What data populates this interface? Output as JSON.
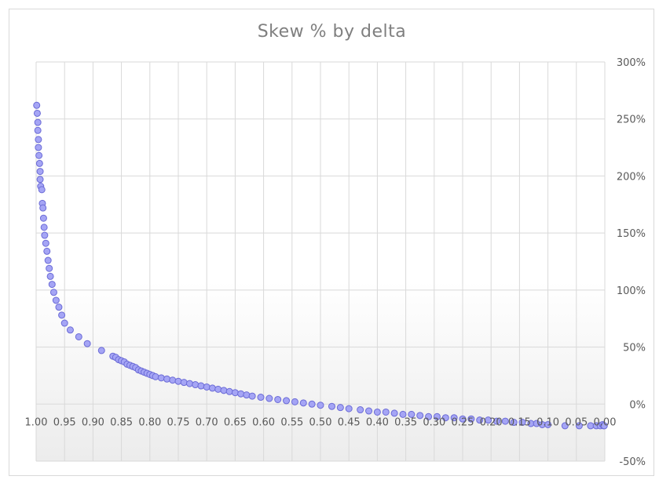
{
  "chart_data": {
    "type": "scatter",
    "title": "Skew % by delta",
    "xlabel": "",
    "ylabel": "",
    "xlim": [
      1.0,
      0.0
    ],
    "x_reversed": true,
    "ylim": [
      -50,
      300
    ],
    "y_unit": "%",
    "grid": true,
    "legend": "none",
    "x_ticks": [
      "1.00",
      "0.95",
      "0.90",
      "0.85",
      "0.80",
      "0.75",
      "0.70",
      "0.65",
      "0.60",
      "0.55",
      "0.50",
      "0.45",
      "0.40",
      "0.35",
      "0.30",
      "0.25",
      "0.20",
      "0.15",
      "0.10",
      "0.05",
      "0.00"
    ],
    "y_ticks": [
      "300%",
      "250%",
      "200%",
      "150%",
      "100%",
      "50%",
      "0%",
      "-50%"
    ],
    "marker_color": "#a5a5f5",
    "marker_edge_color": "#6b6bd6",
    "series": [
      {
        "points": [
          [
            0.999,
            262
          ],
          [
            0.998,
            255
          ],
          [
            0.997,
            247
          ],
          [
            0.997,
            240
          ],
          [
            0.996,
            232
          ],
          [
            0.996,
            225
          ],
          [
            0.995,
            218
          ],
          [
            0.994,
            211
          ],
          [
            0.993,
            204
          ],
          [
            0.993,
            197
          ],
          [
            0.992,
            191
          ],
          [
            0.99,
            188
          ],
          [
            0.989,
            176
          ],
          [
            0.988,
            172
          ],
          [
            0.987,
            163
          ],
          [
            0.986,
            155
          ],
          [
            0.985,
            148
          ],
          [
            0.983,
            141
          ],
          [
            0.981,
            134
          ],
          [
            0.979,
            126
          ],
          [
            0.977,
            119
          ],
          [
            0.975,
            112
          ],
          [
            0.972,
            105
          ],
          [
            0.969,
            98
          ],
          [
            0.965,
            91
          ],
          [
            0.96,
            85
          ],
          [
            0.955,
            78
          ],
          [
            0.95,
            71
          ],
          [
            0.94,
            65
          ],
          [
            0.925,
            59
          ],
          [
            0.91,
            53
          ],
          [
            0.885,
            47
          ],
          [
            0.865,
            42
          ],
          [
            0.86,
            41
          ],
          [
            0.855,
            39
          ],
          [
            0.85,
            38
          ],
          [
            0.845,
            37
          ],
          [
            0.84,
            35
          ],
          [
            0.835,
            34
          ],
          [
            0.83,
            33
          ],
          [
            0.825,
            32
          ],
          [
            0.82,
            30
          ],
          [
            0.815,
            29
          ],
          [
            0.81,
            28
          ],
          [
            0.805,
            27
          ],
          [
            0.8,
            26
          ],
          [
            0.795,
            25
          ],
          [
            0.79,
            24
          ],
          [
            0.78,
            23
          ],
          [
            0.77,
            22
          ],
          [
            0.76,
            21
          ],
          [
            0.75,
            20
          ],
          [
            0.74,
            19
          ],
          [
            0.73,
            18
          ],
          [
            0.72,
            17
          ],
          [
            0.71,
            16
          ],
          [
            0.7,
            15
          ],
          [
            0.69,
            14
          ],
          [
            0.68,
            13
          ],
          [
            0.67,
            12
          ],
          [
            0.66,
            11
          ],
          [
            0.65,
            10
          ],
          [
            0.64,
            9
          ],
          [
            0.63,
            8
          ],
          [
            0.62,
            7
          ],
          [
            0.605,
            6
          ],
          [
            0.59,
            5
          ],
          [
            0.575,
            4
          ],
          [
            0.56,
            3
          ],
          [
            0.545,
            2
          ],
          [
            0.53,
            1
          ],
          [
            0.515,
            0
          ],
          [
            0.5,
            -1
          ],
          [
            0.48,
            -2
          ],
          [
            0.465,
            -3
          ],
          [
            0.45,
            -4
          ],
          [
            0.43,
            -5
          ],
          [
            0.415,
            -6
          ],
          [
            0.4,
            -7
          ],
          [
            0.385,
            -7
          ],
          [
            0.37,
            -8
          ],
          [
            0.355,
            -9
          ],
          [
            0.34,
            -9
          ],
          [
            0.325,
            -10
          ],
          [
            0.31,
            -11
          ],
          [
            0.295,
            -11
          ],
          [
            0.28,
            -12
          ],
          [
            0.265,
            -12
          ],
          [
            0.25,
            -13
          ],
          [
            0.235,
            -13
          ],
          [
            0.22,
            -14
          ],
          [
            0.205,
            -14
          ],
          [
            0.19,
            -15
          ],
          [
            0.175,
            -15
          ],
          [
            0.16,
            -16
          ],
          [
            0.145,
            -16
          ],
          [
            0.13,
            -17
          ],
          [
            0.12,
            -17
          ],
          [
            0.11,
            -18
          ],
          [
            0.1,
            -18
          ],
          [
            0.07,
            -19
          ],
          [
            0.045,
            -19
          ],
          [
            0.025,
            -19
          ],
          [
            0.015,
            -19
          ],
          [
            0.008,
            -19
          ],
          [
            0.004,
            -18
          ],
          [
            0.002,
            -19
          ],
          [
            0.001,
            -19
          ]
        ]
      }
    ]
  }
}
